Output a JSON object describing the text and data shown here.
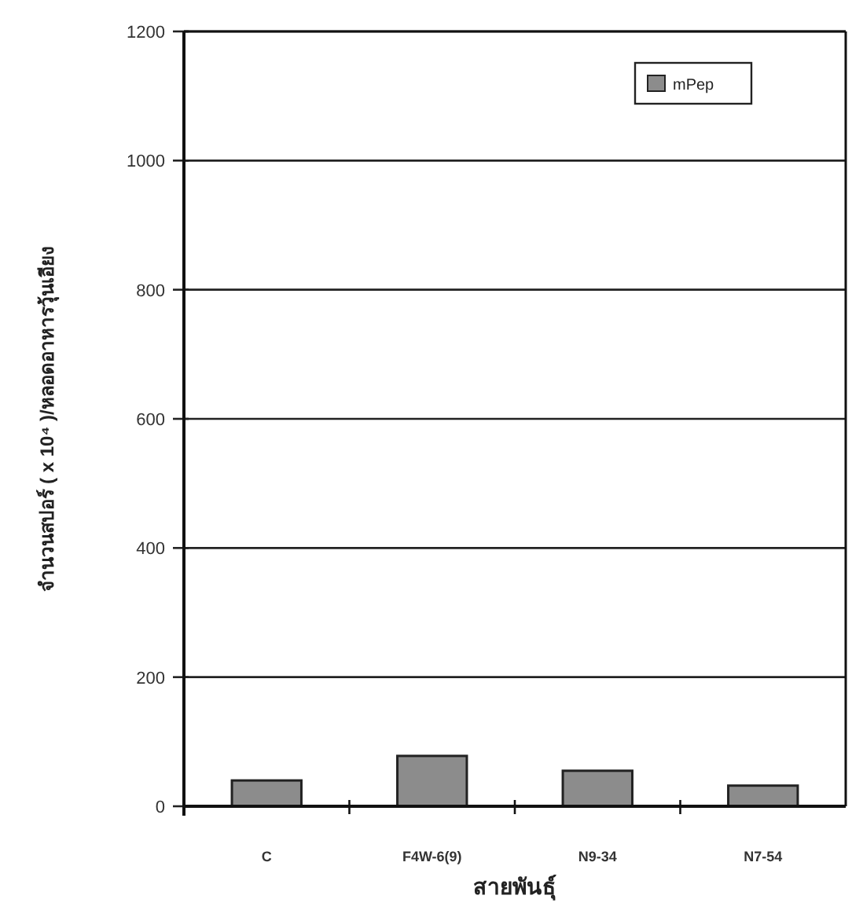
{
  "chart_data": {
    "type": "bar",
    "xlabel": "สายพันธุ์",
    "ylabel": "จำนวนสปอร์ ( x 10⁴ )/หลอดอาหารวุ้นเอียง",
    "categories": [
      "C",
      "F4W-6(9)",
      "N9-34",
      "N7-54"
    ],
    "series": [
      {
        "name": "mPep",
        "color": "#8c8c8c",
        "values": [
          40,
          78,
          55,
          32
        ]
      }
    ],
    "ylim": [
      0,
      1200
    ],
    "yticks": [
      0,
      200,
      400,
      600,
      800,
      1000,
      1200
    ],
    "grid": "y",
    "legend": "top right"
  }
}
